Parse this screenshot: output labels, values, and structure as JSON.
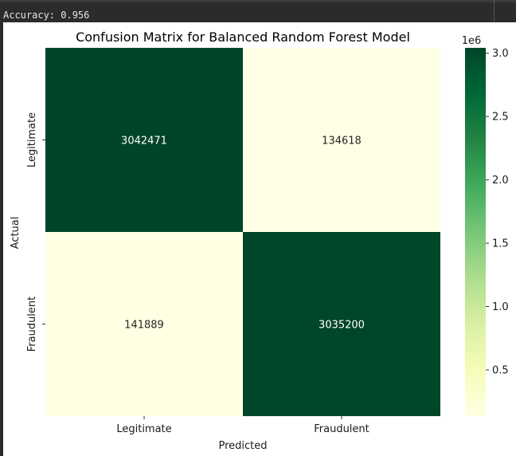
{
  "output": {
    "text": "Accuracy: 0.956"
  },
  "chart_data": {
    "type": "heatmap",
    "title": "Confusion Matrix for Balanced Random Forest Model",
    "xlabel": "Predicted",
    "ylabel": "Actual",
    "x_categories": [
      "Legitimate",
      "Fraudulent"
    ],
    "y_categories": [
      "Legitimate",
      "Fraudulent"
    ],
    "values": [
      [
        3042471,
        134618
      ],
      [
        141889,
        3035200
      ]
    ],
    "annotations": [
      [
        "3042471",
        "134618"
      ],
      [
        "141889",
        "3035200"
      ]
    ],
    "colormap": "YlGn",
    "colorbar": {
      "range": [
        134618,
        3042471
      ],
      "ticks": [
        0.5,
        1.0,
        1.5,
        2.0,
        2.5,
        3.0
      ],
      "tick_labels": [
        "0.5",
        "1.0",
        "1.5",
        "2.0",
        "2.5",
        "3.0"
      ],
      "multiplier_label": "1e6",
      "scale": 1000000
    },
    "colors": {
      "low": "#ffffe5",
      "high": "#004529"
    }
  }
}
